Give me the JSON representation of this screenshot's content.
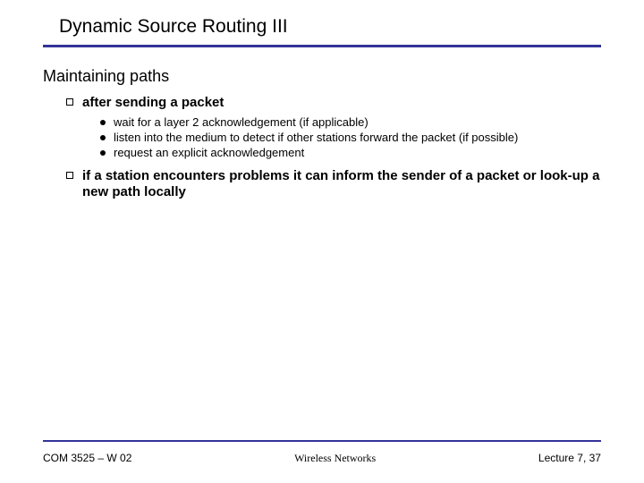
{
  "title": "Dynamic Source Routing III",
  "subtitle": "Maintaining paths",
  "item1": {
    "label": "after sending a packet",
    "sub1": "wait for a layer 2 acknowledgement (if applicable)",
    "sub2": "listen into the medium to detect if other stations forward the packet (if possible)",
    "sub3": "request an explicit acknowledgement"
  },
  "item2": {
    "label": "if a station encounters problems it can inform the sender of a packet or look-up a new path locally"
  },
  "footer": {
    "left": "COM 3525 – W 02",
    "center": "Wireless Networks",
    "right": "Lecture 7, 37"
  },
  "colors": {
    "rule": "#333399",
    "text": "#000000",
    "background": "#ffffff"
  },
  "typography": {
    "title_fontsize": 21,
    "subtitle_fontsize": 18,
    "level1_fontsize": 15,
    "level2_fontsize": 13,
    "footer_fontsize": 12
  }
}
